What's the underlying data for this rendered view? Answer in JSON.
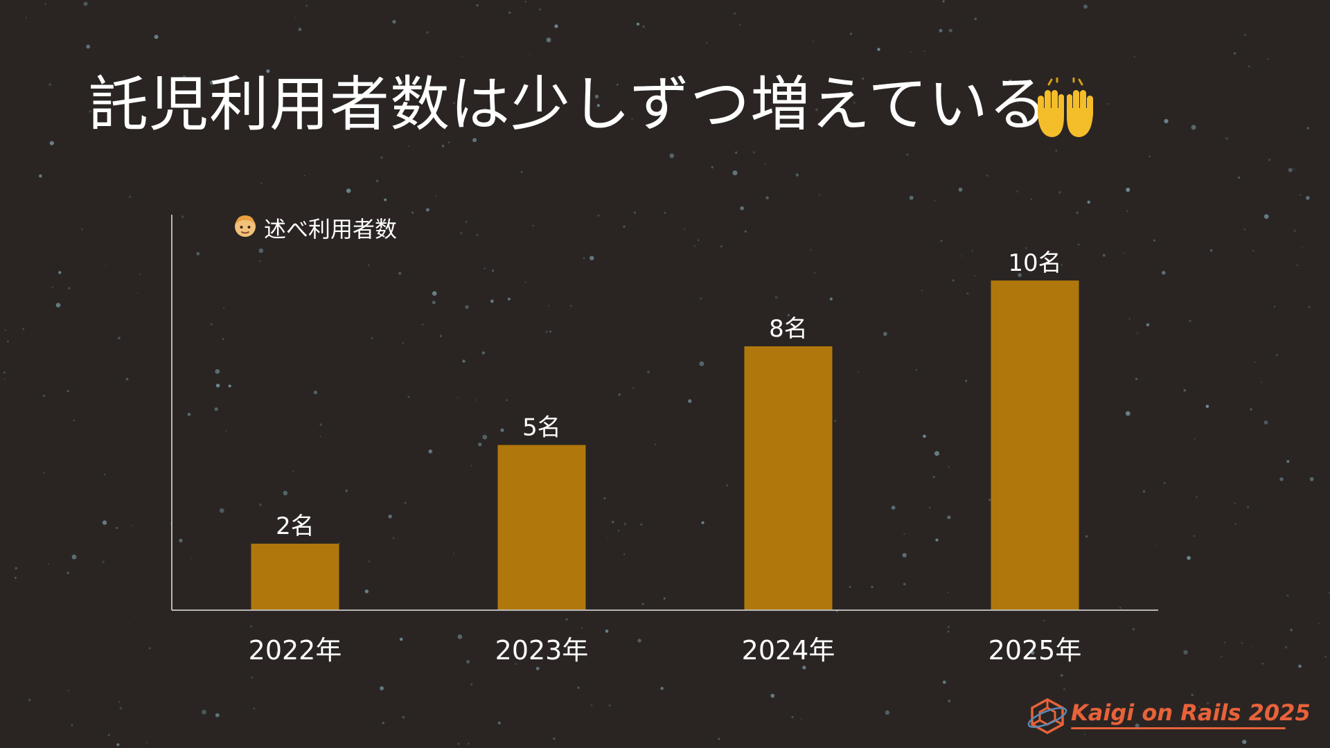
{
  "slide": {
    "title": "託児利用者数は少しずつ増えている",
    "title_icon": "raising-hands-icon",
    "logo_text": "Kaigi on Rails 2025",
    "logo_icon": "kaigi-logo-icon",
    "background_color": "#2a2523"
  },
  "chart_data": {
    "type": "bar",
    "legend": {
      "label": "述べ利用者数",
      "icon": "child-face-icon"
    },
    "categories": [
      "2022年",
      "2023年",
      "2024年",
      "2025年"
    ],
    "values": [
      2,
      5,
      8,
      10
    ],
    "data_labels": [
      "2名",
      "5名",
      "8名",
      "10名"
    ],
    "ylim": [
      0,
      12
    ],
    "grid": false,
    "colors": {
      "bar": "#b0780c",
      "axis": "#e8e8e8"
    }
  }
}
